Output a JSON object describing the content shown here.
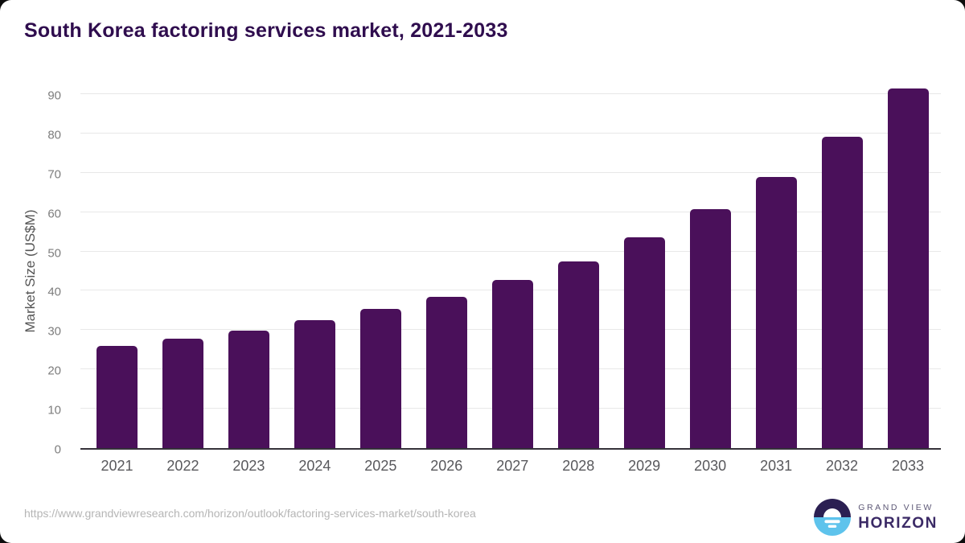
{
  "footer": {
    "source_url": "https://www.grandviewresearch.com/horizon/outlook/factoring-services-market/south-korea"
  },
  "logo": {
    "top": "GRAND VIEW",
    "bottom": "HORIZON"
  },
  "colors": {
    "bar": "#4a105a",
    "title": "#2f0d4e",
    "axis_line": "#35323a",
    "gridline": "#e8e8e8",
    "y_tick": "#7d7d7d",
    "x_tick": "#58585c",
    "footer": "#b5b5b5",
    "logo_dark": "#2b1f52",
    "logo_blue": "#5ec3ec"
  },
  "chart_data": {
    "type": "bar",
    "title": "South Korea factoring services market, 2021-2033",
    "categories": [
      "2021",
      "2022",
      "2023",
      "2024",
      "2025",
      "2026",
      "2027",
      "2028",
      "2029",
      "2030",
      "2031",
      "2032",
      "2033"
    ],
    "values": [
      25.9,
      27.8,
      29.9,
      32.5,
      35.3,
      38.5,
      42.8,
      47.5,
      53.5,
      60.7,
      69.0,
      79.1,
      91.4
    ],
    "xlabel": "",
    "ylabel": "Market Size (US$M)",
    "unit": "US$M",
    "ylim": [
      0,
      90
    ],
    "ytick_step": 10,
    "grid": true,
    "legend": "none"
  }
}
